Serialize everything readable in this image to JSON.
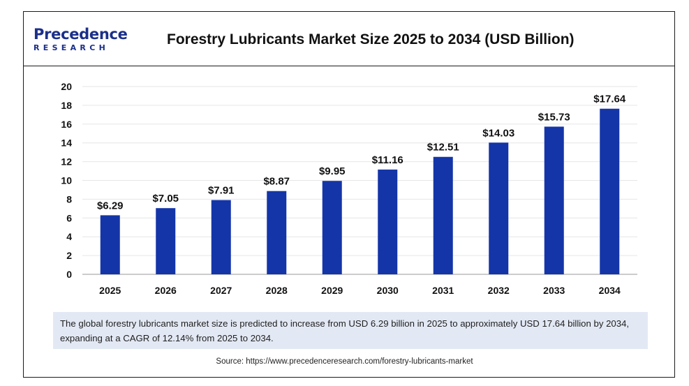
{
  "brand": {
    "logo_top": "Precedence",
    "logo_bottom": "RESEARCH",
    "color": "#1b2f8a"
  },
  "title": "Forestry Lubricants Market Size 2025 to 2034 (USD Billion)",
  "note": "The global forestry lubricants market size is predicted to increase from USD 6.29 billion in 2025 to approximately USD 17.64 billion by 2034, expanding at a CAGR of 12.14% from 2025 to 2034.",
  "source": "Source: https://www.precedenceresearch.com/forestry-lubricants-market",
  "chart_data": {
    "type": "bar",
    "title": "Forestry Lubricants Market Size 2025 to 2034 (USD Billion)",
    "categories": [
      "2025",
      "2026",
      "2027",
      "2028",
      "2029",
      "2030",
      "2031",
      "2032",
      "2033",
      "2034"
    ],
    "values": [
      6.29,
      7.05,
      7.91,
      8.87,
      9.95,
      11.16,
      12.51,
      14.03,
      15.73,
      17.64
    ],
    "value_labels": [
      "$6.29",
      "$7.05",
      "$7.91",
      "$8.87",
      "$9.95",
      "$11.16",
      "$12.51",
      "$14.03",
      "$15.73",
      "$17.64"
    ],
    "yticks": [
      "0",
      "2",
      "4",
      "6",
      "8",
      "10",
      "12",
      "14",
      "16",
      "18",
      "20"
    ],
    "ylim": [
      0,
      20
    ],
    "xlabel": "",
    "ylabel": "",
    "grid": true,
    "bar_color": "#1435a8"
  }
}
